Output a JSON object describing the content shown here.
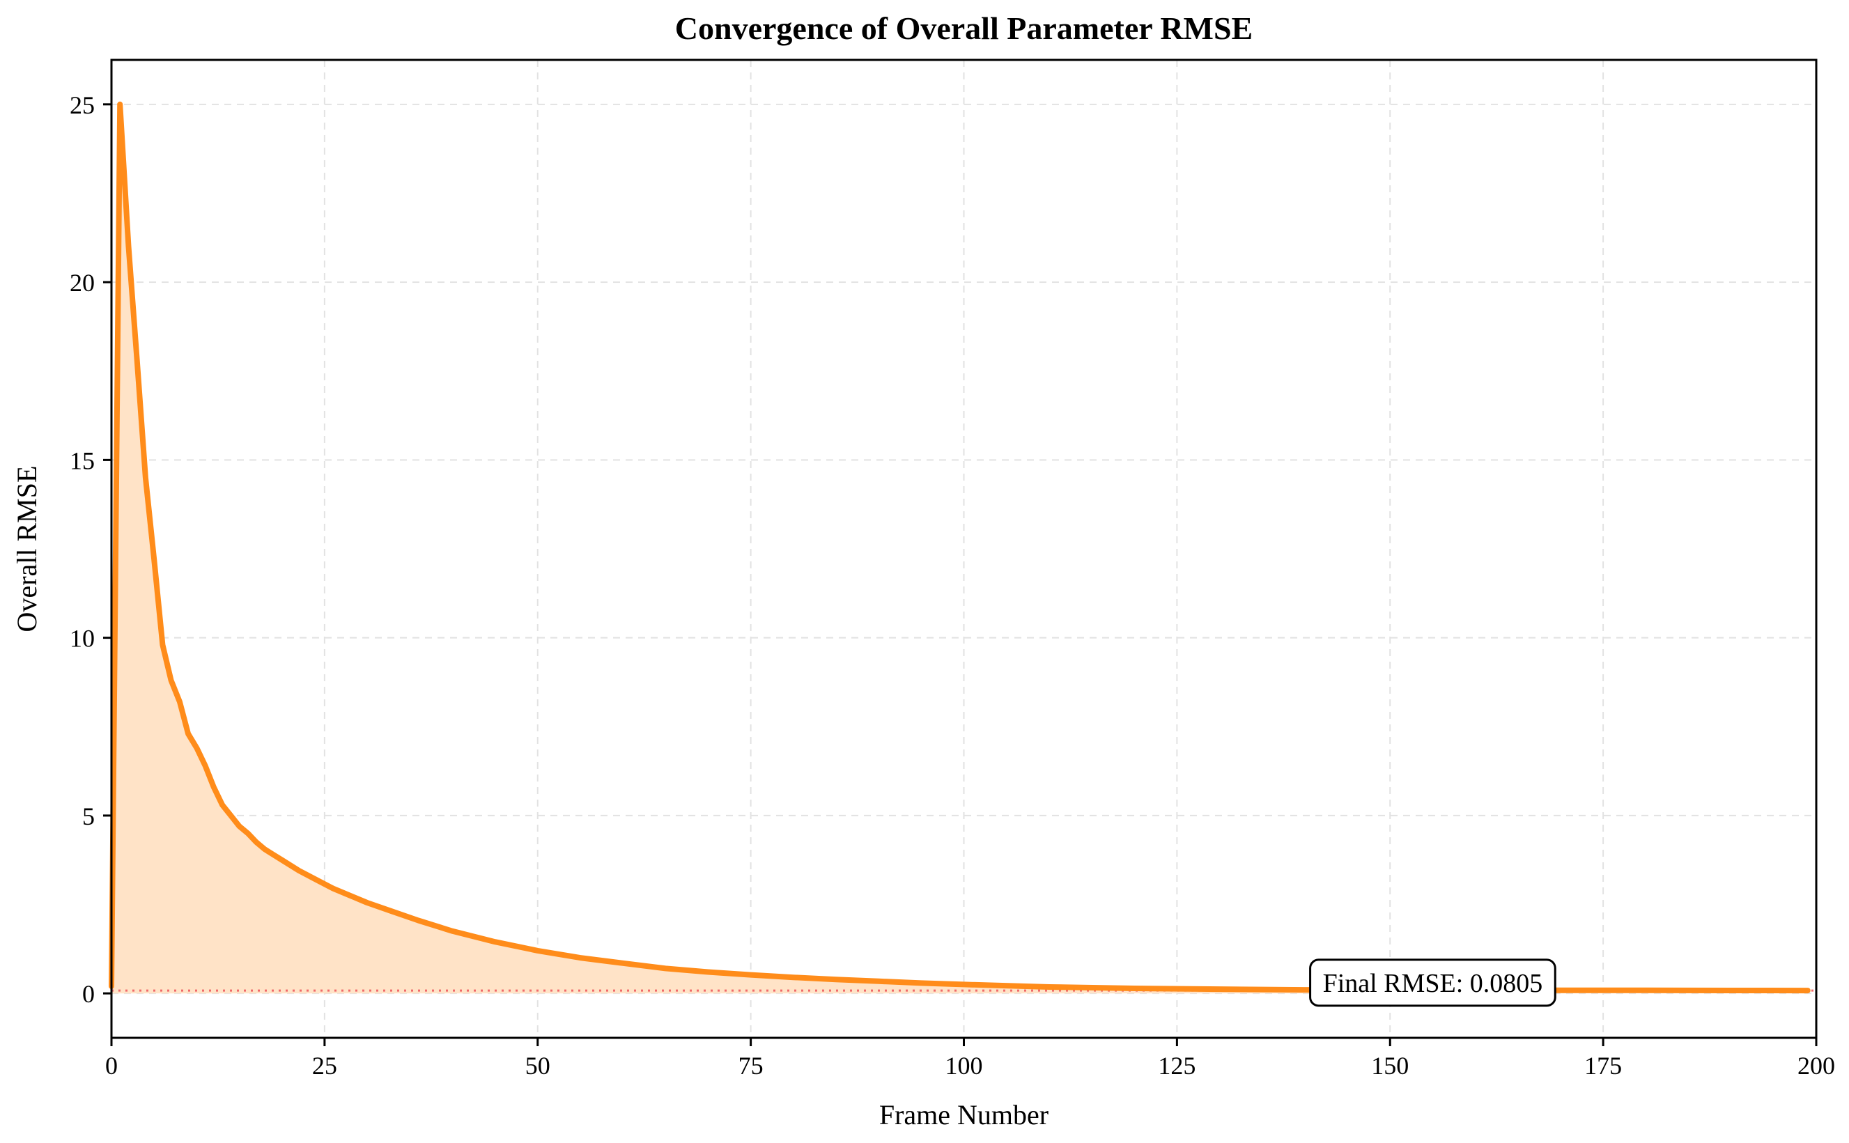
{
  "colors": {
    "line": "#ff8c1a",
    "fill": "#ffe3c7",
    "final_line": "#f06a6a",
    "grid": "#e2e2e2",
    "axis": "#000000"
  },
  "chart_data": {
    "type": "area",
    "title": "Convergence of Overall Parameter RMSE",
    "xlabel": "Frame Number",
    "ylabel": "Overall RMSE",
    "xlim": [
      0,
      200
    ],
    "ylim": [
      -1.25,
      26.25
    ],
    "xticks": [
      0,
      25,
      50,
      75,
      100,
      125,
      150,
      175,
      200
    ],
    "yticks": [
      0,
      5,
      10,
      15,
      20,
      25
    ],
    "grid": true,
    "legend": "none",
    "annotation": {
      "text": "Final RMSE: 0.0805",
      "x": 155,
      "y": 0.3
    },
    "final_value": 0.0805,
    "series": [
      {
        "x": [
          0,
          1,
          2,
          3,
          4,
          5,
          6,
          7,
          8,
          9,
          10,
          11,
          12,
          13,
          14,
          15,
          16,
          17,
          18,
          19,
          20,
          22,
          24,
          26,
          28,
          30,
          33,
          36,
          40,
          45,
          50,
          55,
          60,
          65,
          70,
          75,
          80,
          85,
          90,
          95,
          100,
          110,
          120,
          130,
          140,
          150,
          160,
          170,
          180,
          190,
          199
        ],
        "y": [
          0.2,
          25.0,
          21.0,
          17.8,
          14.5,
          12.2,
          9.8,
          8.8,
          8.2,
          7.3,
          6.9,
          6.4,
          5.8,
          5.3,
          5.0,
          4.7,
          4.5,
          4.25,
          4.05,
          3.9,
          3.75,
          3.45,
          3.2,
          2.95,
          2.75,
          2.55,
          2.3,
          2.05,
          1.75,
          1.45,
          1.2,
          1.0,
          0.85,
          0.7,
          0.6,
          0.52,
          0.45,
          0.39,
          0.34,
          0.29,
          0.25,
          0.18,
          0.14,
          0.12,
          0.1,
          0.095,
          0.09,
          0.087,
          0.085,
          0.082,
          0.0805
        ]
      }
    ]
  }
}
